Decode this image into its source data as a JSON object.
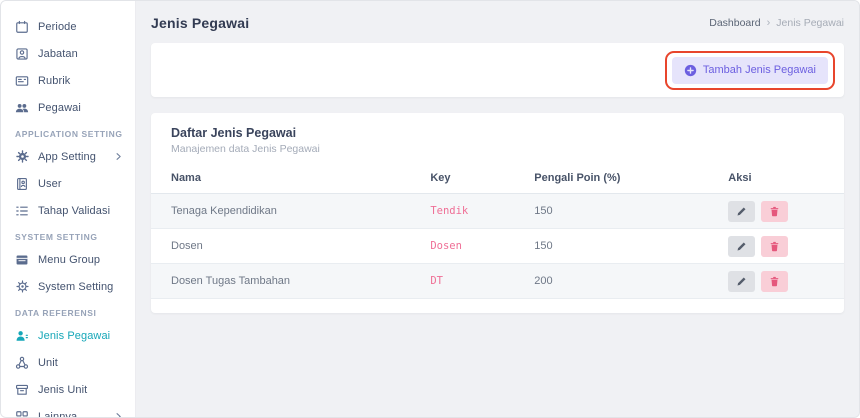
{
  "page_title": "Jenis Pegawai",
  "breadcrumb": {
    "parent": "Dashboard",
    "separator": "›",
    "current": "Jenis Pegawai"
  },
  "sidebar": {
    "sections": [
      {
        "label": "",
        "items": [
          {
            "label": "Periode",
            "icon": "calendar-icon"
          },
          {
            "label": "Jabatan",
            "icon": "id-badge-icon"
          },
          {
            "label": "Rubrik",
            "icon": "card-list-icon"
          },
          {
            "label": "Pegawai",
            "icon": "people-icon"
          }
        ]
      },
      {
        "label": "APPLICATION SETTING",
        "items": [
          {
            "label": "App Setting",
            "icon": "gear-filled-icon",
            "has_children": true
          },
          {
            "label": "User",
            "icon": "address-book-icon"
          },
          {
            "label": "Tahap Validasi",
            "icon": "list-icon"
          }
        ]
      },
      {
        "label": "SYSTEM SETTING",
        "items": [
          {
            "label": "Menu Group",
            "icon": "window-icon"
          },
          {
            "label": "System Setting",
            "icon": "gear-outline-icon"
          }
        ]
      },
      {
        "label": "DATA REFERENSI",
        "items": [
          {
            "label": "Jenis Pegawai",
            "icon": "person-lines-icon",
            "active": true
          },
          {
            "label": "Unit",
            "icon": "share-nodes-icon"
          },
          {
            "label": "Jenis Unit",
            "icon": "archive-box-icon"
          },
          {
            "label": "Lainnya",
            "icon": "grid-icon",
            "has_children": true
          }
        ]
      }
    ]
  },
  "toolbar": {
    "add_button": {
      "label": "Tambah Jenis Pegawai",
      "icon": "plus-circle-icon"
    }
  },
  "card": {
    "title": "Daftar Jenis Pegawai",
    "subtitle": "Manajemen data Jenis Pegawai",
    "table": {
      "columns": [
        "Nama",
        "Key",
        "Pengali Poin (%)",
        "Aksi"
      ],
      "rows": [
        {
          "nama": "Tenaga Kependidikan",
          "key": "Tendik",
          "pengali_poin": "150"
        },
        {
          "nama": "Dosen",
          "key": "Dosen",
          "pengali_poin": "150"
        },
        {
          "nama": "Dosen Tugas Tambahan",
          "key": "DT",
          "pengali_poin": "200"
        }
      ],
      "actions": [
        {
          "name": "edit",
          "icon": "pencil-icon"
        },
        {
          "name": "delete",
          "icon": "trash-icon"
        }
      ]
    }
  },
  "colors": {
    "accent_teal": "#16a7b8",
    "button_bg": "#e6e4fb",
    "button_text": "#6c5fe0",
    "annotation_red": "#e8452c",
    "key_pink": "#ef6f96",
    "delete_bg": "#f9ced7",
    "stripe_bg": "#f5f7f9"
  }
}
